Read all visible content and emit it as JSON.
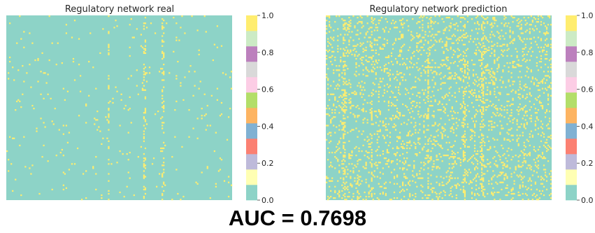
{
  "chart_data": [
    {
      "type": "heatmap",
      "title": "Regulatory network real",
      "xlabel": "",
      "ylabel": "",
      "value_range": [
        0.0,
        1.0
      ],
      "background_value": 0.0,
      "highlight_value": 1.0,
      "highlight_fraction": 0.015,
      "column_bands": [
        0.45,
        0.61,
        0.69
      ],
      "colorbar": {
        "ticks": [
          "0.0",
          "0.2",
          "0.4",
          "0.6",
          "0.8",
          "1.0"
        ],
        "colors": [
          "#8dd3c7",
          "#ffffb3",
          "#bebada",
          "#fb8072",
          "#80b1d3",
          "#fdb462",
          "#b3de69",
          "#fccde5",
          "#d9d9d9",
          "#bc80bd",
          "#ccebc5",
          "#ffed6f"
        ]
      }
    },
    {
      "type": "heatmap",
      "title": "Regulatory network prediction",
      "xlabel": "",
      "ylabel": "",
      "value_range": [
        0.0,
        1.0
      ],
      "background_value": 0.0,
      "highlight_value": 1.0,
      "highlight_fraction": 0.13,
      "column_bands": [
        0.08,
        0.2,
        0.45,
        0.61,
        0.69
      ],
      "colorbar": {
        "ticks": [
          "0.0",
          "0.2",
          "0.4",
          "0.6",
          "0.8",
          "1.0"
        ],
        "colors": [
          "#8dd3c7",
          "#ffffb3",
          "#bebada",
          "#fb8072",
          "#80b1d3",
          "#fdb462",
          "#b3de69",
          "#fccde5",
          "#d9d9d9",
          "#bc80bd",
          "#ccebc5",
          "#ffed6f"
        ]
      }
    }
  ],
  "metric": {
    "label": "AUC = 0.7698"
  }
}
